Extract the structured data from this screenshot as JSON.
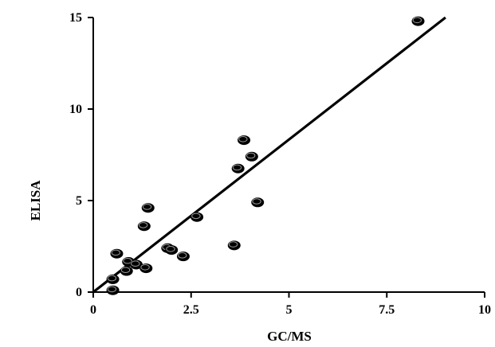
{
  "chart_data": {
    "type": "scatter",
    "title": "",
    "xlabel": "GC/MS",
    "ylabel": "ELISA",
    "xlim": [
      0,
      10
    ],
    "ylim": [
      0,
      15
    ],
    "x_ticks": [
      0,
      2.5,
      5,
      7.5,
      10
    ],
    "x_tick_labels": [
      "0",
      "2.5",
      "5",
      "7.5",
      "10"
    ],
    "y_ticks": [
      0,
      5,
      10,
      15
    ],
    "y_tick_labels": [
      "0",
      "5",
      "10",
      "15"
    ],
    "grid": false,
    "legend": "none",
    "point_color": "#000000",
    "points": [
      {
        "x": 0.5,
        "y": 0.1
      },
      {
        "x": 0.5,
        "y": 0.7
      },
      {
        "x": 0.6,
        "y": 2.1
      },
      {
        "x": 0.85,
        "y": 1.15
      },
      {
        "x": 0.9,
        "y": 1.65
      },
      {
        "x": 1.1,
        "y": 1.5
      },
      {
        "x": 1.3,
        "y": 3.6
      },
      {
        "x": 1.35,
        "y": 1.3
      },
      {
        "x": 1.4,
        "y": 4.6
      },
      {
        "x": 1.9,
        "y": 2.4
      },
      {
        "x": 2.0,
        "y": 2.3
      },
      {
        "x": 2.3,
        "y": 1.95
      },
      {
        "x": 2.65,
        "y": 4.1
      },
      {
        "x": 3.6,
        "y": 2.55
      },
      {
        "x": 3.7,
        "y": 6.75
      },
      {
        "x": 3.85,
        "y": 8.3
      },
      {
        "x": 4.05,
        "y": 7.4
      },
      {
        "x": 4.2,
        "y": 4.9
      },
      {
        "x": 8.3,
        "y": 14.8
      }
    ],
    "fit_line": {
      "x": [
        0,
        9.0
      ],
      "y": [
        0,
        15.0
      ],
      "color": "#000000"
    }
  }
}
